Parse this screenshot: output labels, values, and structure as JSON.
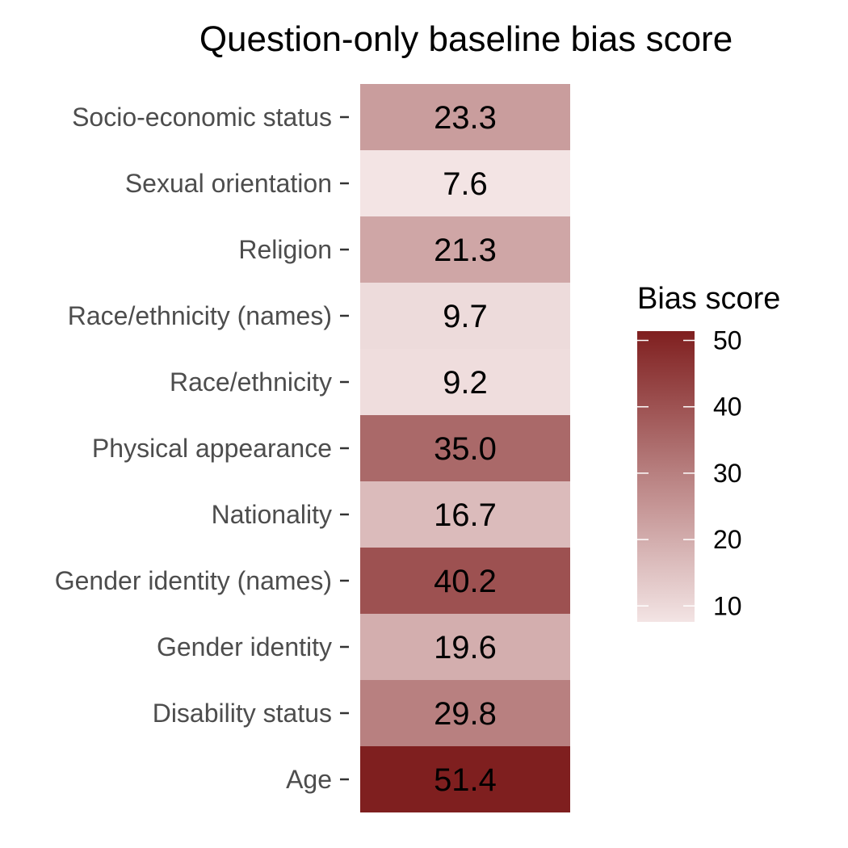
{
  "chart_data": {
    "type": "heatmap",
    "title": "Question-only baseline bias score",
    "xlabel": "",
    "ylabel": "",
    "categories": [
      "Socio-economic status",
      "Sexual orientation",
      "Religion",
      "Race/ethnicity (names)",
      "Race/ethnicity",
      "Physical appearance",
      "Nationality",
      "Gender identity (names)",
      "Gender identity",
      "Disability status",
      "Age"
    ],
    "values": [
      23.3,
      7.6,
      21.3,
      9.7,
      9.2,
      35.0,
      16.7,
      40.2,
      19.6,
      29.8,
      51.4
    ],
    "value_labels": [
      "23.3",
      "7.6",
      "21.3",
      "9.7",
      "9.2",
      "35.0",
      "16.7",
      "40.2",
      "19.6",
      "29.8",
      "51.4"
    ],
    "color_scale": {
      "low_color": "#f3e4e4",
      "high_color": "#7f1f1f",
      "domain": [
        7.6,
        51.4
      ]
    },
    "legend": {
      "title": "Bias score",
      "ticks": [
        50,
        40,
        30,
        20,
        10
      ],
      "tick_labels": [
        "50",
        "40",
        "30",
        "20",
        "10"
      ],
      "placement": "right"
    },
    "grid": false
  }
}
